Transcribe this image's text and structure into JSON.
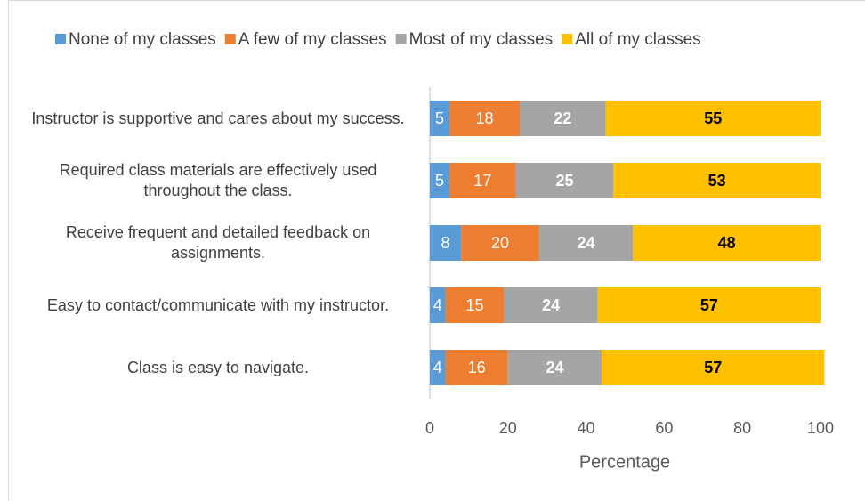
{
  "chart_data": {
    "type": "stacked-bar-horizontal",
    "categories": [
      "Instructor is supportive and cares about my success.",
      "Required class materials are effectively used throughout the class.",
      "Receive frequent and detailed feedback on assignments.",
      "Easy to contact/communicate with my instructor.",
      "Class is easy to navigate."
    ],
    "series": [
      {
        "name": "None of my classes",
        "color": "#5b9bd5",
        "values": [
          5,
          5,
          8,
          4,
          4
        ]
      },
      {
        "name": "A few of my classes",
        "color": "#ed7d31",
        "values": [
          18,
          17,
          20,
          15,
          16
        ]
      },
      {
        "name": "Most of my classes",
        "color": "#a5a5a5",
        "values": [
          22,
          25,
          24,
          24,
          24
        ]
      },
      {
        "name": "All of my classes",
        "color": "#ffc000",
        "values": [
          55,
          53,
          48,
          57,
          57
        ]
      }
    ],
    "x_label": "Percentage",
    "xlim": [
      0,
      100
    ],
    "xticks": [
      0,
      20,
      40,
      60,
      80,
      100
    ],
    "legend": "top"
  }
}
